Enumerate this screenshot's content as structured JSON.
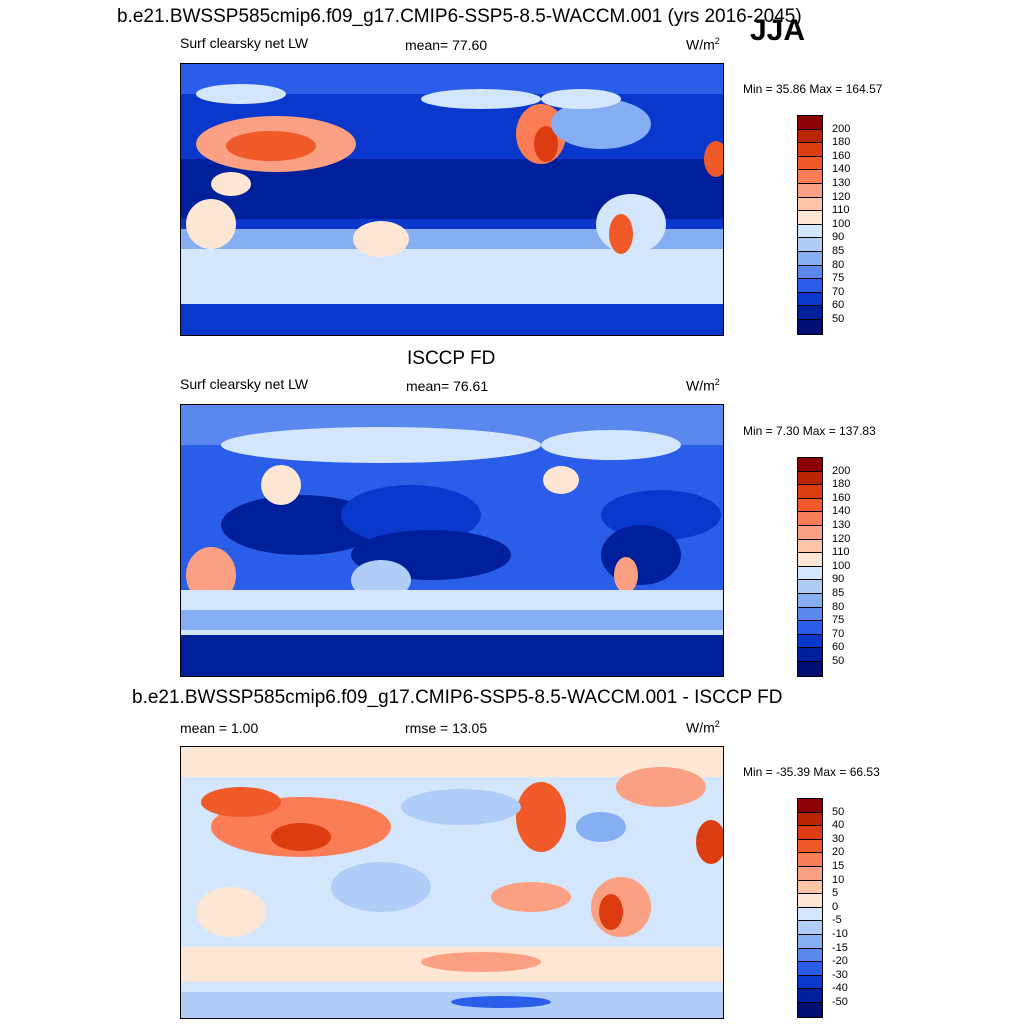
{
  "season": "JJA",
  "panels": [
    {
      "title": "b.e21.BWSSP585cmip6.f09_g17.CMIP6-SSP5-8.5-WACCM.001 (yrs 2016-2045)",
      "variable": "Surf clearsky net LW",
      "mean": "mean=  77.60",
      "units": "W/m",
      "units_sup": "2",
      "minmax": "Min =  35.86 Max = 164.57"
    },
    {
      "title": "ISCCP FD",
      "variable": "Surf clearsky net LW",
      "mean": "mean=  76.61",
      "units": "W/m",
      "units_sup": "2",
      "minmax": "Min =   7.30 Max = 137.83"
    },
    {
      "title": "b.e21.BWSSP585cmip6.f09_g17.CMIP6-SSP5-8.5-WACCM.001 - ISCCP FD",
      "mean": "mean =   1.00",
      "rmse": "rmse =  13.05",
      "units": "W/m",
      "units_sup": "2",
      "minmax": "Min = -35.39 Max =  66.53"
    }
  ],
  "chart_data": [
    {
      "type": "heatmap",
      "title": "b.e21.BWSSP585cmip6.f09_g17.CMIP6-SSP5-8.5-WACCM.001 (yrs 2016-2045)",
      "variable": "Surf clearsky net LW",
      "units": "W/m2",
      "mean": 77.6,
      "min": 35.86,
      "max": 164.57,
      "colorbar_levels": [
        200,
        180,
        160,
        140,
        130,
        120,
        110,
        100,
        90,
        85,
        80,
        75,
        70,
        60,
        50
      ],
      "colorbar_colors": [
        "#8b0000",
        "#b82400",
        "#dc3c10",
        "#f05a28",
        "#fa7d55",
        "#fca083",
        "#fdc4a6",
        "#fde7d4",
        "#d4e6fb",
        "#b0cdf7",
        "#86aef2",
        "#5a88ee",
        "#2a5ee8",
        "#0a38cc",
        "#001f9a",
        "#000d72"
      ]
    },
    {
      "type": "heatmap",
      "title": "ISCCP FD",
      "variable": "Surf clearsky net LW",
      "units": "W/m2",
      "mean": 76.61,
      "min": 7.3,
      "max": 137.83,
      "colorbar_levels": [
        200,
        180,
        160,
        140,
        130,
        120,
        110,
        100,
        90,
        85,
        80,
        75,
        70,
        60,
        50
      ],
      "colorbar_colors": [
        "#8b0000",
        "#b82400",
        "#dc3c10",
        "#f05a28",
        "#fa7d55",
        "#fca083",
        "#fdc4a6",
        "#fde7d4",
        "#d4e6fb",
        "#b0cdf7",
        "#86aef2",
        "#5a88ee",
        "#2a5ee8",
        "#0a38cc",
        "#001f9a",
        "#000d72"
      ]
    },
    {
      "type": "heatmap",
      "title": "b.e21.BWSSP585cmip6.f09_g17.CMIP6-SSP5-8.5-WACCM.001 - ISCCP FD",
      "units": "W/m2",
      "mean": 1.0,
      "rmse": 13.05,
      "min": -35.39,
      "max": 66.53,
      "colorbar_levels": [
        50,
        40,
        30,
        20,
        15,
        10,
        5,
        0,
        -5,
        -10,
        -15,
        -20,
        -30,
        -40,
        -50
      ],
      "colorbar_colors": [
        "#8b0000",
        "#b82400",
        "#dc3c10",
        "#f05a28",
        "#fa7d55",
        "#fca083",
        "#fdc4a6",
        "#fde7d4",
        "#d4e6fb",
        "#b0cdf7",
        "#86aef2",
        "#5a88ee",
        "#2a5ee8",
        "#0a38cc",
        "#001f9a",
        "#000d72"
      ]
    }
  ]
}
